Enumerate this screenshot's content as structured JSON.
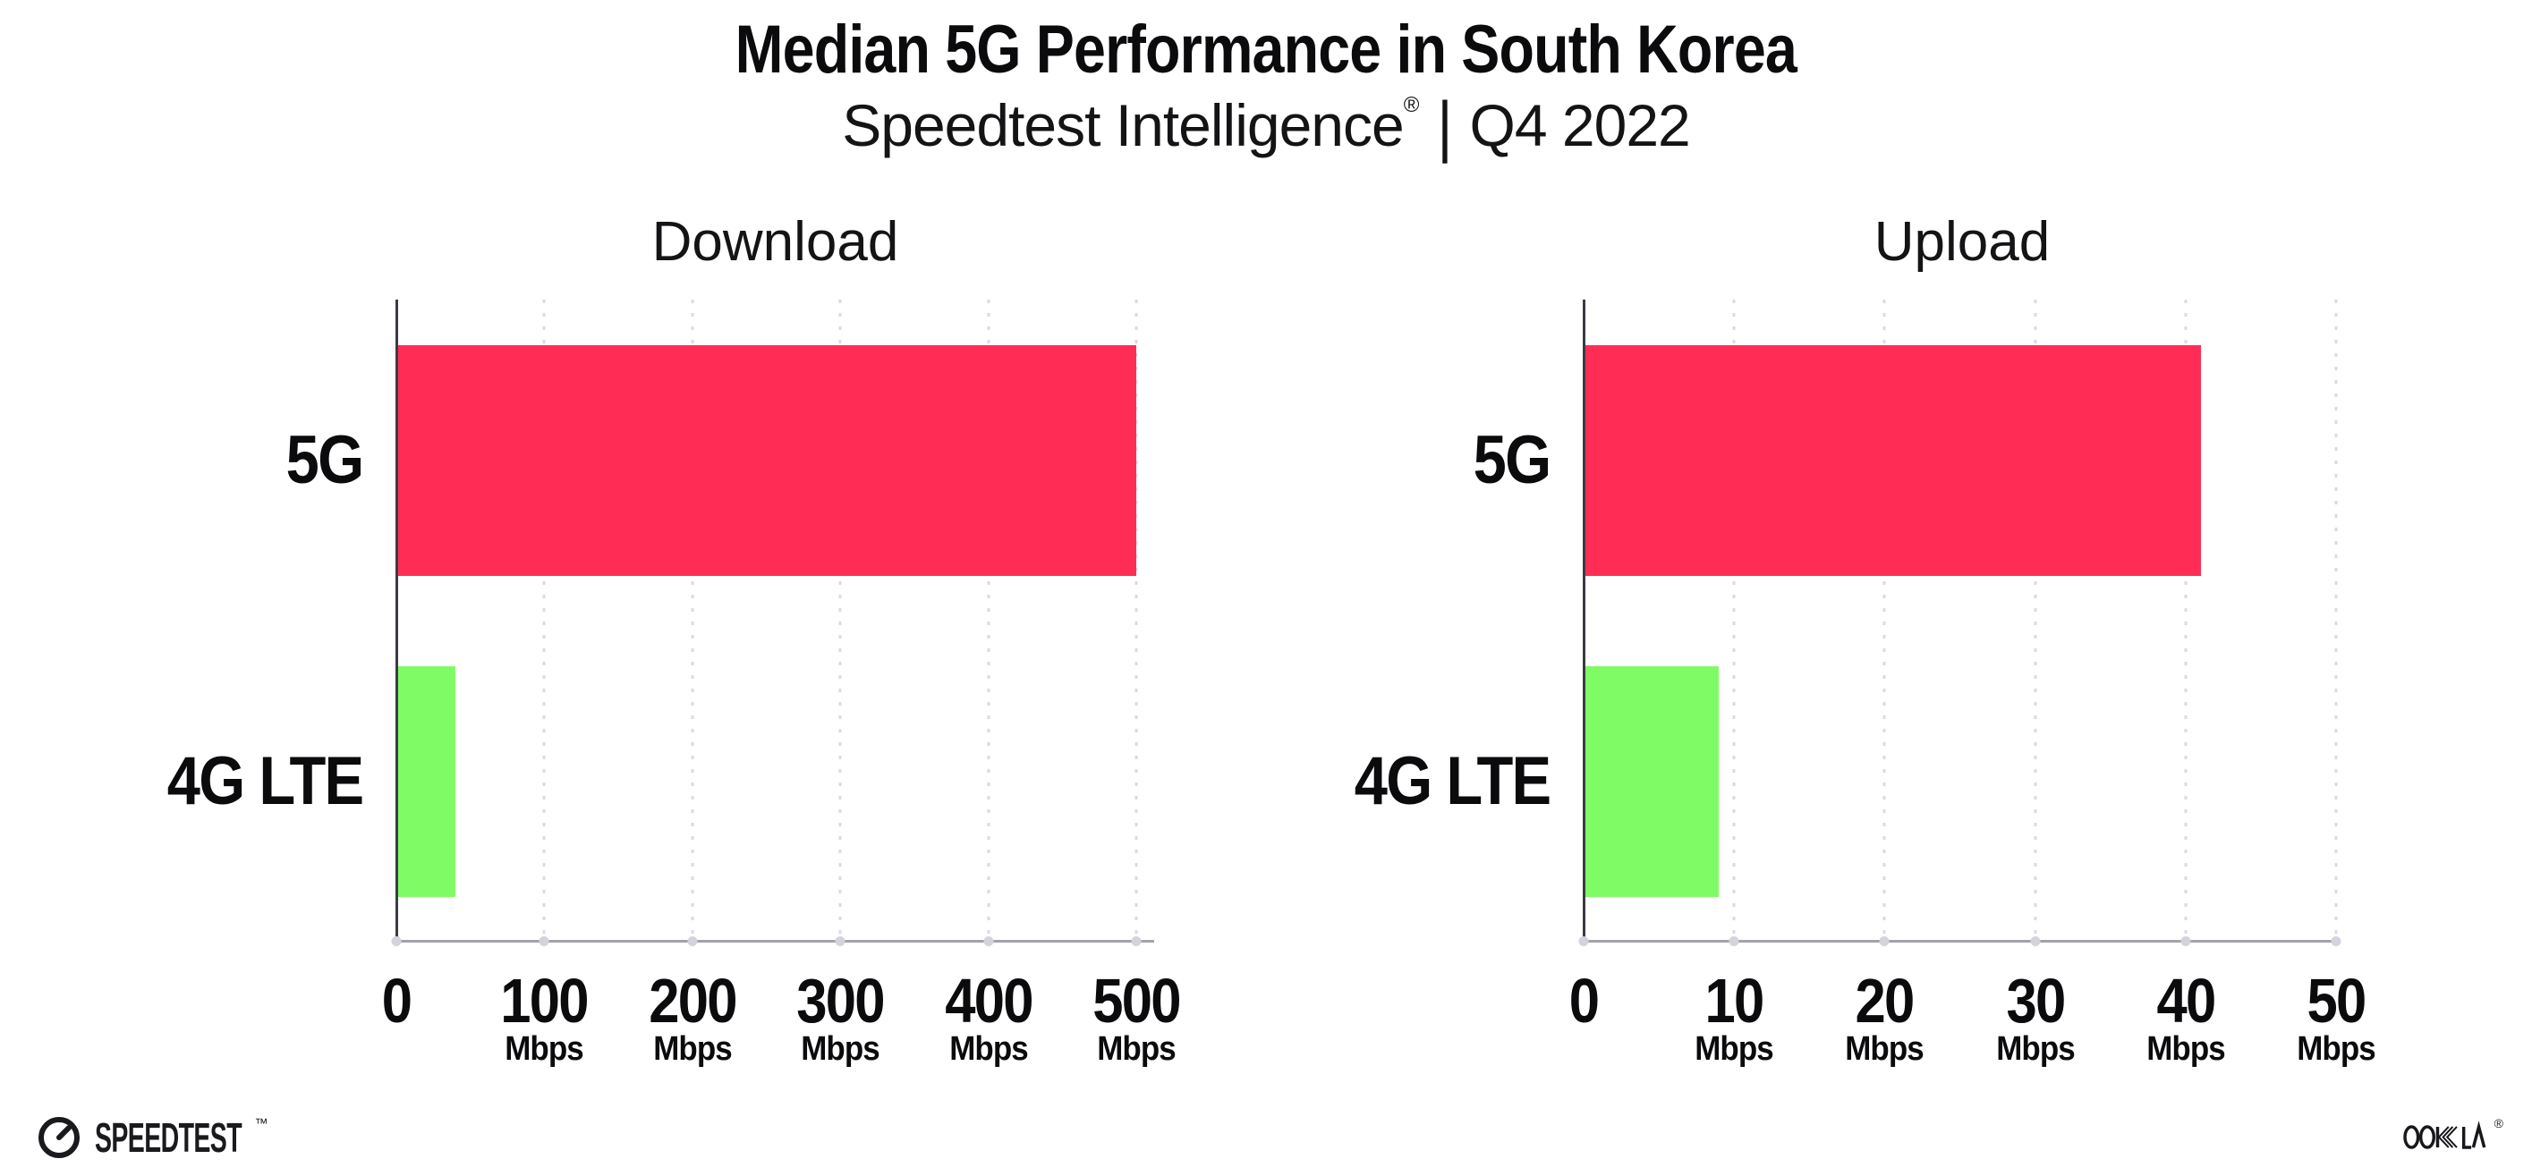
{
  "header": {
    "title": "Median 5G Performance in South Korea",
    "subtitle_brand": "Speedtest Intelligence",
    "subtitle_registered": "®",
    "subtitle_separator": "|",
    "subtitle_period": "Q4 2022"
  },
  "chart_data": [
    {
      "type": "bar",
      "orientation": "horizontal",
      "title": "Download",
      "categories": [
        "5G",
        "4G LTE"
      ],
      "values": [
        500,
        40
      ],
      "unit": "Mbps",
      "xticks": [
        0,
        100,
        200,
        300,
        400,
        500
      ],
      "xlim": [
        0,
        512
      ],
      "grid": "vertical-dotted",
      "legend": "none",
      "series_colors": [
        "#FF2D55",
        "#7FFC65"
      ]
    },
    {
      "type": "bar",
      "orientation": "horizontal",
      "title": "Upload",
      "categories": [
        "5G",
        "4G LTE"
      ],
      "values": [
        41,
        9
      ],
      "unit": "Mbps",
      "xticks": [
        0,
        10,
        20,
        30,
        40,
        50
      ],
      "xlim": [
        0,
        50.3
      ],
      "grid": "vertical-dotted",
      "legend": "none",
      "series_colors": [
        "#FF2D55",
        "#7FFC65"
      ]
    }
  ],
  "footer": {
    "speedtest_wordmark": "SPEEDTEST",
    "speedtest_trademark": "™",
    "ookla_wordmark": "OOKLA",
    "ookla_registered": "®"
  },
  "colors": {
    "bar_5g": "#FF2D55",
    "bar_4g_lte": "#7FFC65",
    "gridline": "#D9DAE4",
    "y_axis": "#3B3B45",
    "x_axis": "#A3A3AB",
    "text": "#0B0B0D",
    "background": "#FFFFFF"
  }
}
